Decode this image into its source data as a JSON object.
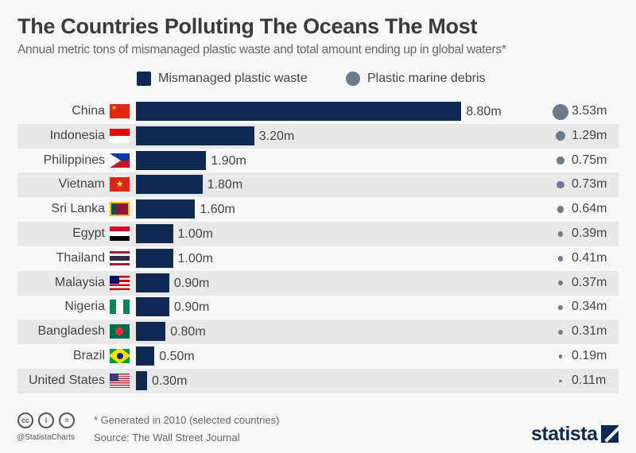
{
  "chart_data": {
    "type": "bar",
    "title": "The Countries Polluting The Oceans The Most",
    "subtitle": "Annual metric tons of mismanaged plastic waste and total amount ending up in global waters*",
    "legend": [
      "Mismanaged plastic waste",
      "Plastic marine debris"
    ],
    "legend_placement": "top",
    "colors": {
      "bar": "#0f2a52",
      "dot": "#6b7a8c"
    },
    "categories": [
      "China",
      "Indonesia",
      "Philippines",
      "Vietnam",
      "Sri Lanka",
      "Egypt",
      "Thailand",
      "Malaysia",
      "Nigeria",
      "Bangladesh",
      "Brazil",
      "United States"
    ],
    "series": [
      {
        "name": "Mismanaged plastic waste",
        "values": [
          8.8,
          3.2,
          1.9,
          1.8,
          1.6,
          1.0,
          1.0,
          0.9,
          0.9,
          0.8,
          0.5,
          0.3
        ],
        "labels": [
          "8.80m",
          "3.20m",
          "1.90m",
          "1.80m",
          "1.60m",
          "1.00m",
          "1.00m",
          "0.90m",
          "0.90m",
          "0.80m",
          "0.50m",
          "0.30m"
        ]
      },
      {
        "name": "Plastic marine debris",
        "values": [
          3.53,
          1.29,
          0.75,
          0.73,
          0.64,
          0.39,
          0.41,
          0.37,
          0.34,
          0.31,
          0.19,
          0.11
        ],
        "labels": [
          "3.53m",
          "1.29m",
          "0.75m",
          "0.73m",
          "0.64m",
          "0.39m",
          "0.41m",
          "0.37m",
          "0.34m",
          "0.31m",
          "0.19m",
          "0.11m"
        ]
      }
    ]
  },
  "footer": {
    "note": "* Generated in 2010 (selected countries)",
    "source": "Source: The Wall Street Journal",
    "handle": "@StatistaCharts",
    "logo": "statista"
  }
}
